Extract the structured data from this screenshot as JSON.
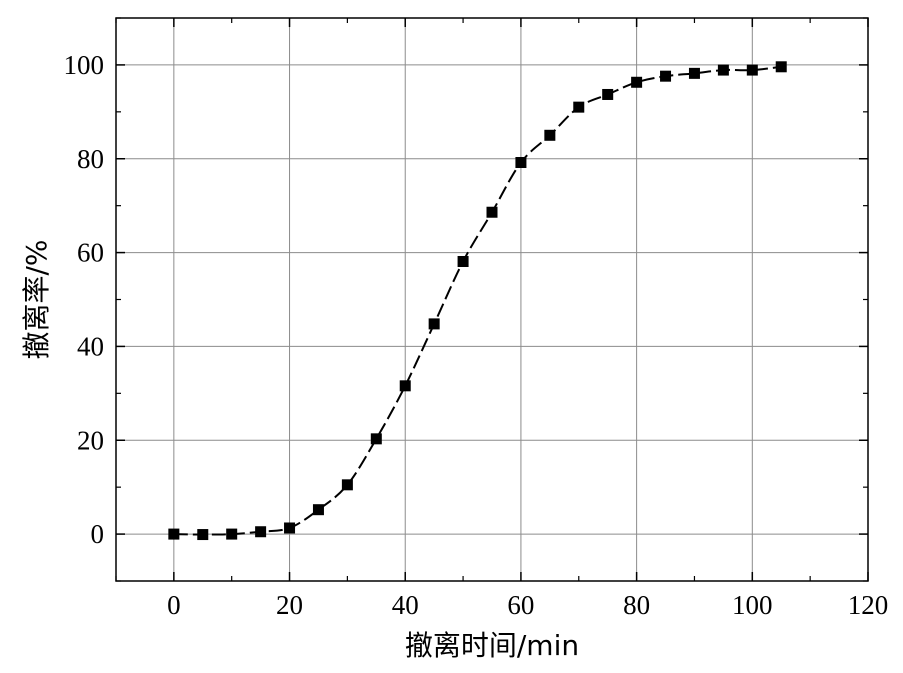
{
  "chart_data": {
    "type": "line",
    "xlabel": "撤离时间/min",
    "ylabel": "撤离率/%",
    "xlim": [
      -10,
      120
    ],
    "ylim": [
      -10,
      110
    ],
    "xticks": [
      0,
      20,
      40,
      60,
      80,
      100,
      120
    ],
    "yticks": [
      0,
      20,
      40,
      60,
      80,
      100
    ],
    "grid": true,
    "series": [
      {
        "marker": "square",
        "line_style": "dashed-smooth",
        "color": "#000000",
        "x": [
          0,
          5,
          10,
          15,
          20,
          25,
          30,
          35,
          40,
          45,
          50,
          55,
          60,
          65,
          70,
          75,
          80,
          85,
          90,
          95,
          100,
          105
        ],
        "y": [
          0,
          -0.1,
          0,
          0.5,
          1.3,
          5.2,
          10.5,
          20.3,
          31.6,
          44.8,
          58.1,
          68.6,
          79.2,
          85.0,
          91.0,
          93.7,
          96.3,
          97.6,
          98.2,
          98.9,
          98.9,
          99.6
        ]
      }
    ]
  }
}
